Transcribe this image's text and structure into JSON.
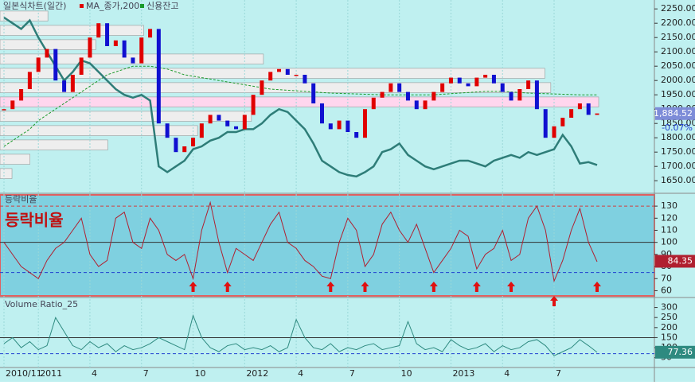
{
  "chart_data": [
    {
      "type": "price",
      "legend": [
        "일본식차트(일간)",
        "MA_종가,200",
        "신용잔고"
      ],
      "ylim": [
        1620,
        2270
      ],
      "yticks": [
        {
          "value": 1650,
          "label": "1650.00"
        },
        {
          "value": 1700,
          "label": "1700.00"
        },
        {
          "value": 1750,
          "label": "1750.00"
        },
        {
          "value": 1800,
          "label": "1800.00"
        },
        {
          "value": 1850,
          "label": "1850.00"
        },
        {
          "value": 1900,
          "label": "1900.00"
        },
        {
          "value": 1950,
          "label": "1950.00"
        },
        {
          "value": 2000,
          "label": "2000.00"
        },
        {
          "value": 2050,
          "label": "2050.00"
        },
        {
          "value": 2100,
          "label": "2100.00"
        },
        {
          "value": 2150,
          "label": "2150.00"
        },
        {
          "value": 2200,
          "label": "2200.00"
        },
        {
          "value": 2250,
          "label": "2250.00"
        }
      ],
      "xticks": [
        {
          "value": 0,
          "label": "2010/11"
        },
        {
          "value": 4,
          "label": "2011"
        },
        {
          "value": 10,
          "label": "4"
        },
        {
          "value": 16,
          "label": "7"
        },
        {
          "value": 22,
          "label": "10"
        },
        {
          "value": 28,
          "label": "2012"
        },
        {
          "value": 34,
          "label": "4"
        },
        {
          "value": 40,
          "label": "7"
        },
        {
          "value": 46,
          "label": "10"
        },
        {
          "value": 52,
          "label": "2013"
        },
        {
          "value": 58,
          "label": "4"
        },
        {
          "value": 64,
          "label": "7"
        }
      ],
      "up_color": "#e00000",
      "down_color": "#1010d0",
      "values": [
        1900,
        1930,
        1970,
        2030,
        2080,
        2110,
        2000,
        1960,
        2020,
        2080,
        2150,
        2200,
        2120,
        2140,
        2080,
        2060,
        2150,
        2180,
        1850,
        1800,
        1750,
        1770,
        1800,
        1850,
        1880,
        1860,
        1840,
        1830,
        1880,
        1950,
        2000,
        2030,
        2040,
        2020,
        2020,
        1990,
        1920,
        1850,
        1830,
        1860,
        1820,
        1800,
        1900,
        1940,
        1960,
        1990,
        1960,
        1930,
        1900,
        1930,
        1960,
        1990,
        2010,
        1990,
        1980,
        2010,
        2020,
        1990,
        1960,
        1930,
        1970,
        2000,
        1900,
        1800,
        1840,
        1870,
        1900,
        1920,
        1880,
        1885
      ],
      "series": [
        {
          "name": "MA_종가,200",
          "color": "#1a9a2a",
          "values": [
            1770,
            1790,
            1810,
            1830,
            1860,
            1880,
            1900,
            1920,
            1940,
            1960,
            1980,
            2000,
            2020,
            2030,
            2040,
            2050,
            2050,
            2050,
            2045,
            2040,
            2030,
            2020,
            2015,
            2010,
            2005,
            2000,
            1995,
            1990,
            1985,
            1980,
            1975,
            1970,
            1968,
            1966,
            1964,
            1962,
            1960,
            1958,
            1956,
            1955,
            1954,
            1953,
            1952,
            1951,
            1950,
            1950,
            1950,
            1950,
            1950,
            1950,
            1950,
            1952,
            1954,
            1956,
            1958,
            1960,
            1962,
            1962,
            1962,
            1960,
            1958,
            1956,
            1955,
            1954,
            1953,
            1952,
            1951,
            1950,
            1950,
            1950
          ]
        },
        {
          "name": "신용잔고",
          "color": "#2e7d78",
          "values": [
            2220,
            2200,
            2180,
            2210,
            2150,
            2100,
            2050,
            2000,
            2030,
            2070,
            2060,
            2030,
            2000,
            1970,
            1950,
            1940,
            1950,
            1930,
            1700,
            1680,
            1700,
            1720,
            1760,
            1770,
            1790,
            1800,
            1820,
            1820,
            1830,
            1830,
            1850,
            1880,
            1900,
            1890,
            1860,
            1830,
            1780,
            1720,
            1700,
            1680,
            1670,
            1665,
            1680,
            1700,
            1750,
            1760,
            1780,
            1740,
            1720,
            1700,
            1690,
            1700,
            1710,
            1720,
            1720,
            1710,
            1700,
            1720,
            1730,
            1740,
            1730,
            1750,
            1740,
            1750,
            1760,
            1810,
            1770,
            1710,
            1715,
            1705
          ]
        }
      ],
      "profile": {
        "levels": [
          1650,
          1700,
          1750,
          1800,
          1850,
          1900,
          1950,
          2000,
          2050,
          2100,
          2150,
          2200
        ],
        "values": [
          2,
          5,
          18,
          33,
          42,
          100,
          92,
          91,
          44,
          16,
          24,
          8
        ],
        "highlight": 5
      },
      "last": {
        "value": 1884.52,
        "label": "1,884.52"
      },
      "change": "-0.07%"
    },
    {
      "type": "indicator",
      "title": "등락비율",
      "overlay": "등락비율",
      "color": "#b02030",
      "ylim": [
        57,
        136
      ],
      "yticks": [
        60,
        70,
        80,
        90,
        100,
        110,
        120,
        130
      ],
      "hlines": [
        {
          "value": 130,
          "color": "#d04040",
          "dash": true
        },
        {
          "value": 100,
          "color": "#303030",
          "dash": false
        },
        {
          "value": 75,
          "color": "#2040d0",
          "dash": true
        }
      ],
      "values": [
        100,
        90,
        80,
        75,
        70,
        85,
        95,
        100,
        110,
        120,
        90,
        80,
        85,
        120,
        125,
        100,
        95,
        120,
        110,
        90,
        85,
        90,
        70,
        110,
        133,
        100,
        75,
        95,
        90,
        85,
        100,
        115,
        125,
        100,
        95,
        85,
        80,
        72,
        70,
        100,
        120,
        110,
        80,
        90,
        115,
        125,
        110,
        100,
        115,
        95,
        75,
        85,
        95,
        110,
        105,
        78,
        90,
        95,
        110,
        85,
        90,
        120,
        130,
        110,
        68,
        85,
        110,
        128,
        100,
        84
      ],
      "signals": [
        22,
        26,
        38,
        42,
        50,
        55,
        59,
        64,
        69
      ],
      "last": {
        "value": 84.35,
        "label": "84.35"
      }
    },
    {
      "type": "indicator",
      "title": "Volume Ratio_25",
      "color": "#2e8a80",
      "ylim": [
        25,
        330
      ],
      "yticks": [
        50,
        100,
        150,
        200,
        250,
        300
      ],
      "hlines": [
        {
          "value": 150,
          "color": "#303030",
          "dash": false
        },
        {
          "value": 70,
          "color": "#2040d0",
          "dash": true
        }
      ],
      "values": [
        120,
        150,
        100,
        130,
        90,
        110,
        250,
        180,
        110,
        90,
        130,
        100,
        120,
        80,
        110,
        90,
        100,
        120,
        150,
        130,
        110,
        90,
        260,
        150,
        100,
        80,
        110,
        120,
        90,
        100,
        90,
        110,
        80,
        100,
        240,
        150,
        100,
        90,
        120,
        80,
        100,
        90,
        110,
        120,
        90,
        100,
        110,
        230,
        120,
        90,
        100,
        80,
        140,
        110,
        90,
        100,
        120,
        80,
        110,
        90,
        100,
        130,
        140,
        110,
        60,
        80,
        100,
        140,
        110,
        77
      ],
      "last": {
        "value": 77.36,
        "label": "77.36"
      }
    }
  ]
}
